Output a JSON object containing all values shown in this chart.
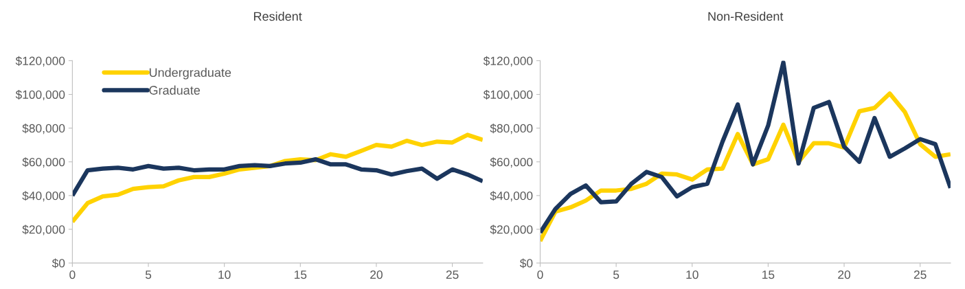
{
  "chart_data": [
    {
      "type": "line",
      "title": "Resident",
      "x": [
        0,
        1,
        2,
        3,
        4,
        5,
        6,
        7,
        8,
        9,
        10,
        11,
        12,
        13,
        14,
        15,
        16,
        17,
        18,
        19,
        20,
        21,
        22,
        23,
        24,
        25,
        26,
        27
      ],
      "series": [
        {
          "name": "Undergraduate",
          "color": "#ffd200",
          "values": [
            24500,
            35500,
            39500,
            40500,
            44000,
            45000,
            45500,
            49000,
            51000,
            51000,
            53000,
            55500,
            56500,
            57500,
            60500,
            61500,
            61000,
            64500,
            63000,
            66500,
            70000,
            69000,
            72500,
            70000,
            72000,
            71500,
            76000,
            73000
          ]
        },
        {
          "name": "Graduate",
          "color": "#1b365d",
          "values": [
            40000,
            55000,
            56000,
            56500,
            55500,
            57500,
            56000,
            56500,
            55000,
            55500,
            55500,
            57500,
            58000,
            57500,
            59000,
            59500,
            61500,
            58500,
            58500,
            55500,
            55000,
            52500,
            54500,
            56000,
            50000,
            55500,
            52500,
            48500
          ]
        }
      ],
      "xlim": [
        0,
        27
      ],
      "xticks": [
        0,
        5,
        10,
        15,
        20,
        25
      ],
      "ylim": [
        0,
        120000
      ],
      "yticks": [
        {
          "value": 0,
          "label": "$0"
        },
        {
          "value": 20000,
          "label": "$20,000"
        },
        {
          "value": 40000,
          "label": "$40,000"
        },
        {
          "value": 60000,
          "label": "$60,000"
        },
        {
          "value": 80000,
          "label": "$80,000"
        },
        {
          "value": 100000,
          "label": "$100,000"
        },
        {
          "value": 120000,
          "label": "$120,000"
        }
      ],
      "legend": "top left",
      "grid": false
    },
    {
      "type": "line",
      "title": "Non-Resident",
      "x": [
        0,
        1,
        2,
        3,
        4,
        5,
        6,
        7,
        8,
        9,
        10,
        11,
        12,
        13,
        14,
        15,
        16,
        17,
        18,
        19,
        20,
        21,
        22,
        23,
        24,
        25,
        26,
        27
      ],
      "series": [
        {
          "color": "#ffd200",
          "values": [
            13000,
            30500,
            33000,
            37000,
            43000,
            43000,
            44000,
            47000,
            53000,
            52500,
            49500,
            55500,
            56000,
            76500,
            58500,
            61500,
            82000,
            60000,
            71000,
            71000,
            68500,
            90000,
            92000,
            100500,
            89500,
            70500,
            63000,
            64500
          ]
        },
        {
          "color": "#1b365d",
          "values": [
            18000,
            32000,
            41000,
            46000,
            36000,
            36500,
            47000,
            54000,
            51000,
            39500,
            45000,
            47000,
            72000,
            94000,
            58500,
            81500,
            119000,
            59000,
            92000,
            95500,
            69000,
            60000,
            86000,
            63000,
            68000,
            73500,
            70500,
            44500
          ]
        }
      ],
      "xlim": [
        0,
        27
      ],
      "xticks": [
        0,
        5,
        10,
        15,
        20,
        25
      ],
      "ylim": [
        0,
        120000
      ],
      "yticks": [
        {
          "value": 0,
          "label": "$0"
        },
        {
          "value": 20000,
          "label": "$20,000"
        },
        {
          "value": 40000,
          "label": "$40,000"
        },
        {
          "value": 60000,
          "label": "$60,000"
        },
        {
          "value": 80000,
          "label": "$80,000"
        },
        {
          "value": 100000,
          "label": "$100,000"
        },
        {
          "value": 120000,
          "label": "$120,000"
        }
      ],
      "grid": false
    }
  ]
}
